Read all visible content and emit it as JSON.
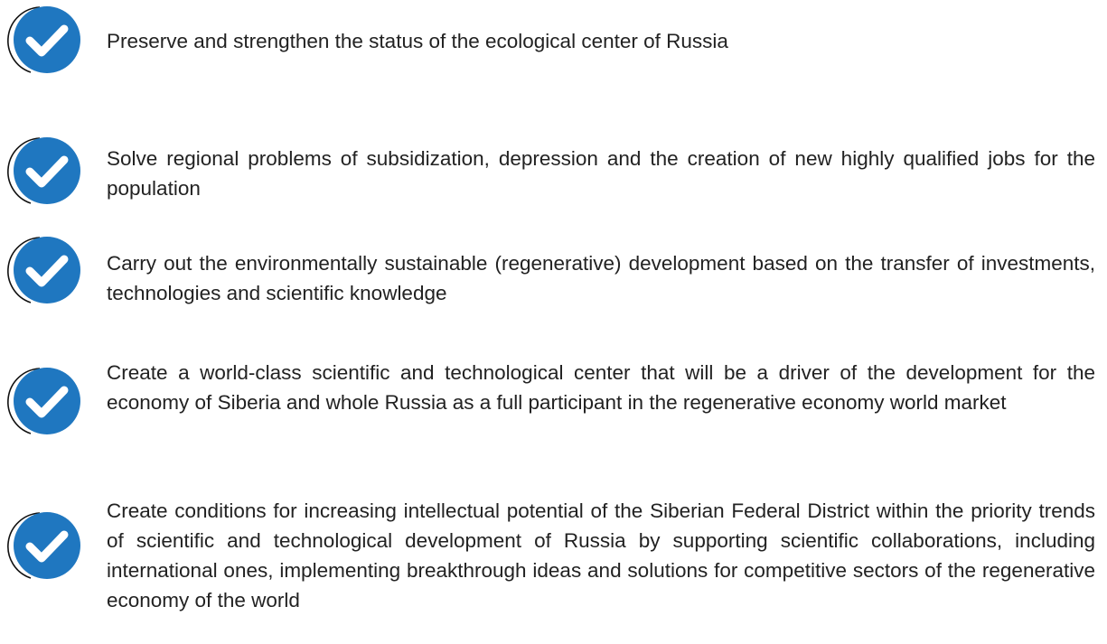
{
  "items": [
    {
      "text": "Preserve and strengthen the status of the ecological center of Russia"
    },
    {
      "text": "Solve regional problems of subsidization, depression and the creation of new highly qualified jobs for the population"
    },
    {
      "text": "Carry out the environmentally sustainable (regenerative) development based on the transfer of investments, technologies and scientific knowledge"
    },
    {
      "text": "Create a world-class scientific and technological center that will be a driver of the development for the economy of Siberia and whole Russia as a full participant in the regenerative economy world market"
    },
    {
      "text": "Create conditions for increasing intellectual potential of the Siberian Federal District within the priority trends of scientific and technological development of Russia by supporting scientific collaborations, including international ones, implementing breakthrough ideas and solutions for competitive sectors of the regenerative economy of the world"
    }
  ]
}
